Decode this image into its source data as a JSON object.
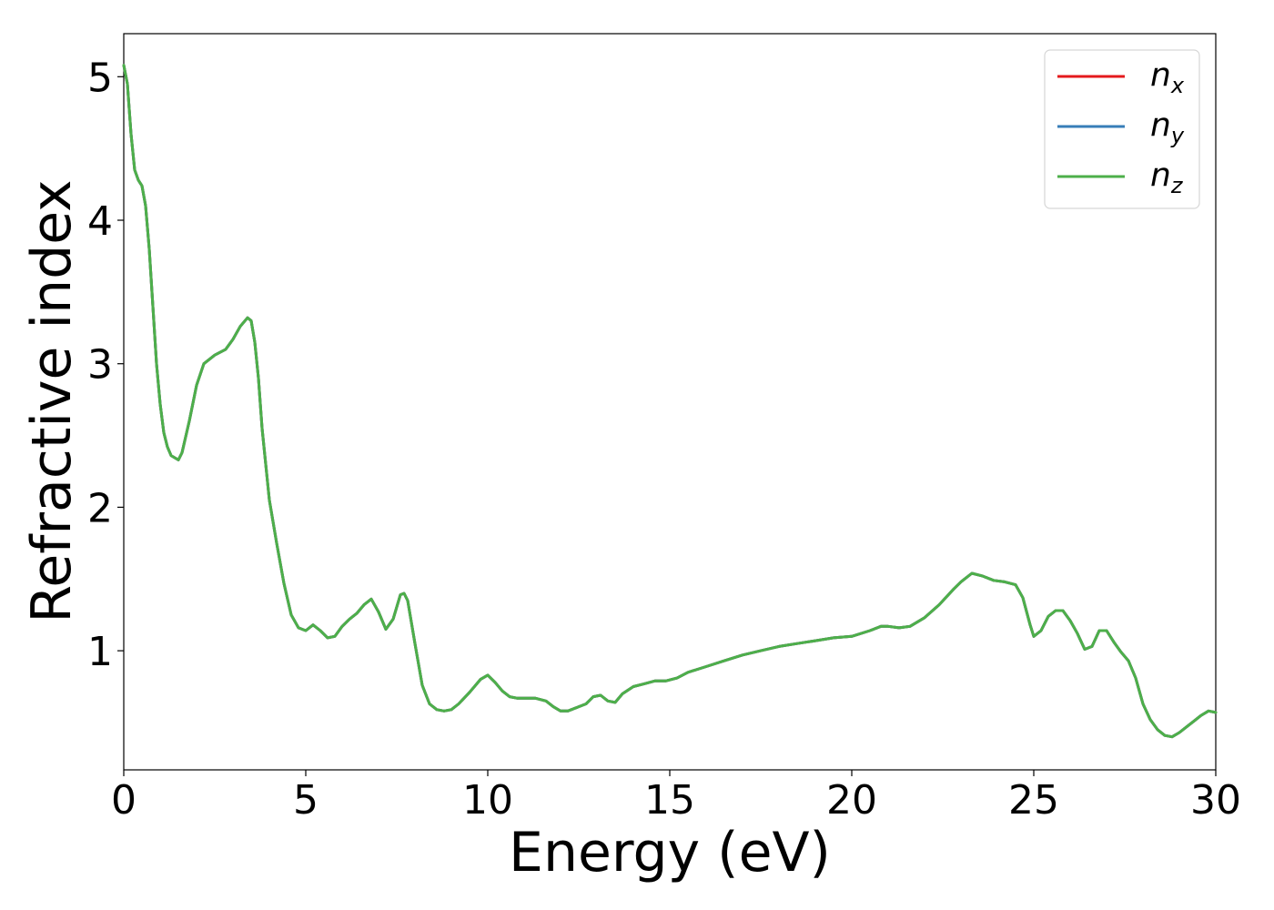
{
  "chart_data": {
    "type": "line",
    "title": "",
    "xlabel": "Energy (eV)",
    "ylabel": "Refractive index",
    "xlim": [
      0,
      30
    ],
    "ylim": [
      0.17,
      5.3
    ],
    "xticks": [
      0,
      5,
      10,
      15,
      20,
      25,
      30
    ],
    "yticks": [
      1,
      2,
      3,
      4,
      5
    ],
    "grid": false,
    "legend_position": "top-right",
    "series": [
      {
        "name": "n_x",
        "label_main": "n",
        "label_sub": "x",
        "color": "#e41a1c"
      },
      {
        "name": "n_y",
        "label_main": "n",
        "label_sub": "y",
        "color": "#377eb8"
      },
      {
        "name": "n_z",
        "label_main": "n",
        "label_sub": "z",
        "color": "#4daf4a"
      }
    ],
    "curve": {
      "x": [
        0,
        0.1,
        0.2,
        0.3,
        0.4,
        0.5,
        0.6,
        0.7,
        0.8,
        0.9,
        1.0,
        1.1,
        1.2,
        1.3,
        1.5,
        1.6,
        1.8,
        2.0,
        2.2,
        2.5,
        2.8,
        3.0,
        3.2,
        3.4,
        3.5,
        3.6,
        3.7,
        3.8,
        4.0,
        4.2,
        4.4,
        4.6,
        4.8,
        5.0,
        5.2,
        5.4,
        5.6,
        5.8,
        6.0,
        6.2,
        6.4,
        6.6,
        6.8,
        7.0,
        7.2,
        7.4,
        7.6,
        7.7,
        7.8,
        8.0,
        8.2,
        8.4,
        8.6,
        8.8,
        9.0,
        9.2,
        9.5,
        9.8,
        10.0,
        10.2,
        10.4,
        10.6,
        10.8,
        11.0,
        11.3,
        11.6,
        11.8,
        12.0,
        12.2,
        12.5,
        12.7,
        12.9,
        13.1,
        13.3,
        13.5,
        13.7,
        14.0,
        14.3,
        14.6,
        14.9,
        15.2,
        15.5,
        16.0,
        16.5,
        17.0,
        17.5,
        18.0,
        18.5,
        19.0,
        19.5,
        20.0,
        20.5,
        20.8,
        21.0,
        21.3,
        21.6,
        22.0,
        22.4,
        22.8,
        23.0,
        23.3,
        23.6,
        23.9,
        24.2,
        24.5,
        24.7,
        24.9,
        25.0,
        25.2,
        25.4,
        25.6,
        25.8,
        26.0,
        26.2,
        26.4,
        26.6,
        26.8,
        27.0,
        27.2,
        27.4,
        27.6,
        27.8,
        28.0,
        28.2,
        28.4,
        28.6,
        28.8,
        29.0,
        29.2,
        29.4,
        29.6,
        29.8,
        30.0
      ],
      "y": [
        5.08,
        4.95,
        4.6,
        4.35,
        4.28,
        4.24,
        4.1,
        3.8,
        3.4,
        3.0,
        2.72,
        2.52,
        2.42,
        2.36,
        2.33,
        2.38,
        2.6,
        2.85,
        3.0,
        3.06,
        3.1,
        3.17,
        3.26,
        3.32,
        3.3,
        3.15,
        2.9,
        2.55,
        2.05,
        1.75,
        1.47,
        1.25,
        1.16,
        1.14,
        1.18,
        1.14,
        1.09,
        1.1,
        1.17,
        1.22,
        1.26,
        1.32,
        1.36,
        1.27,
        1.15,
        1.22,
        1.39,
        1.4,
        1.35,
        1.05,
        0.76,
        0.63,
        0.59,
        0.58,
        0.59,
        0.63,
        0.71,
        0.8,
        0.83,
        0.78,
        0.72,
        0.68,
        0.67,
        0.67,
        0.67,
        0.65,
        0.61,
        0.58,
        0.58,
        0.61,
        0.63,
        0.68,
        0.69,
        0.65,
        0.64,
        0.7,
        0.75,
        0.77,
        0.79,
        0.79,
        0.81,
        0.85,
        0.89,
        0.93,
        0.97,
        1.0,
        1.03,
        1.05,
        1.07,
        1.09,
        1.1,
        1.14,
        1.17,
        1.17,
        1.16,
        1.17,
        1.23,
        1.32,
        1.43,
        1.48,
        1.54,
        1.52,
        1.49,
        1.48,
        1.46,
        1.37,
        1.18,
        1.1,
        1.14,
        1.24,
        1.28,
        1.28,
        1.21,
        1.12,
        1.01,
        1.03,
        1.14,
        1.14,
        1.06,
        0.99,
        0.93,
        0.81,
        0.63,
        0.52,
        0.45,
        0.41,
        0.4,
        0.43,
        0.47,
        0.51,
        0.55,
        0.58,
        0.57
      ]
    }
  }
}
